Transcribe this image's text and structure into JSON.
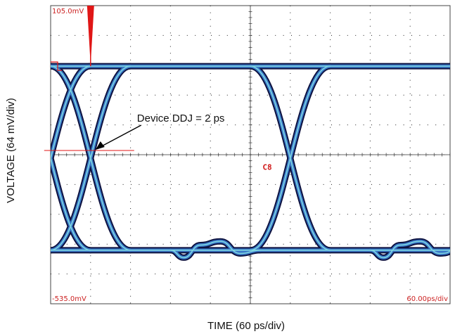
{
  "chart_data": {
    "type": "line",
    "title": "",
    "xlabel": "TIME (60 ps/div)",
    "ylabel": "VOLTAGE (64 mV/div)",
    "x_unit": "ps",
    "y_unit": "mV",
    "xlim": [
      0,
      600
    ],
    "ylim": [
      -535,
      105
    ],
    "x_per_div": 60,
    "y_per_div": 64,
    "divisions": {
      "x": 10,
      "y": 10
    },
    "grid": true,
    "top_voltage_label": "105.0mV",
    "bottom_voltage_label": "-535.0mV",
    "timebase_label": "60.00ps/div",
    "levels": {
      "high_mV": -25,
      "low_mV": -420
    },
    "crossings_ps": [
      -12,
      12,
      288,
      312
    ],
    "edge_duration_ps": 120,
    "lower_ripple": {
      "x": [
        180,
        200,
        225,
        255,
        285,
        315
      ],
      "y": [
        -420,
        -436,
        -409,
        -401,
        -427,
        -420
      ]
    },
    "trigger_marker_x_ps": 60,
    "annotation": {
      "text": "Device DDJ = 2 ps",
      "x_ps": 60,
      "y_mV": -215
    },
    "marker_label": "C8",
    "colors": {
      "trace_outer": "#0d1240",
      "trace_inner": "#3a78c8",
      "trace_core": "#7fd6e0",
      "grid_dots": "#222222",
      "marker_red": "#e01616"
    }
  }
}
